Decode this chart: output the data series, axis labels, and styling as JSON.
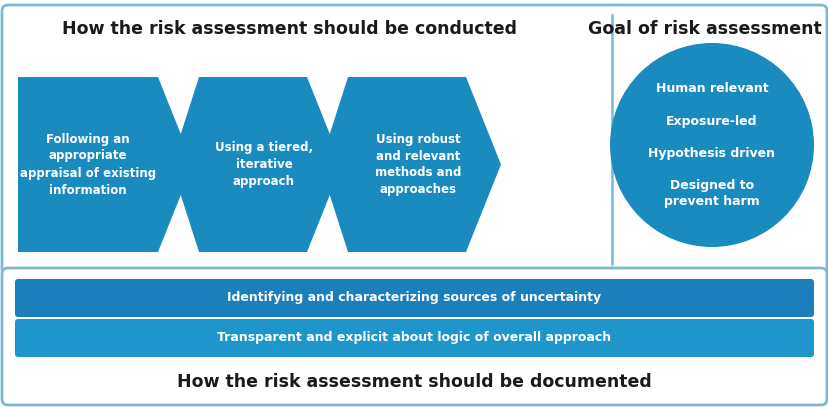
{
  "title_top": "How the risk assessment should be conducted",
  "title_goal": "Goal of risk assessment",
  "title_bottom": "How the risk assessment should be documented",
  "arrow1_text": "Following an\nappropriate\nappraisal of existing\ninformation",
  "arrow2_text": "Using a tiered,\niterative\napproach",
  "arrow3_text": "Using robust\nand relevant\nmethods and\napproaches",
  "circle_lines": "Human relevant\n\nExposure-led\n\nHypothesis driven\n\nDesigned to\nprevent harm",
  "bar1_text": "Identifying and characterizing sources of uncertainty",
  "bar2_text": "Transparent and explicit about logic of overall approach",
  "arrow_color": "#1A8BBF",
  "circle_color": "#1A8BBF",
  "bar1_color": "#1A7FBB",
  "bar2_color": "#1E96CC",
  "outer_box_edge": "#7AB8D8",
  "bottom_box_edge": "#7AB8D8",
  "bg_color": "#FFFFFF",
  "text_white": "#FFFFFF",
  "text_dark": "#1a1a1a",
  "fig_w": 8.29,
  "fig_h": 4.07,
  "dpi": 100
}
